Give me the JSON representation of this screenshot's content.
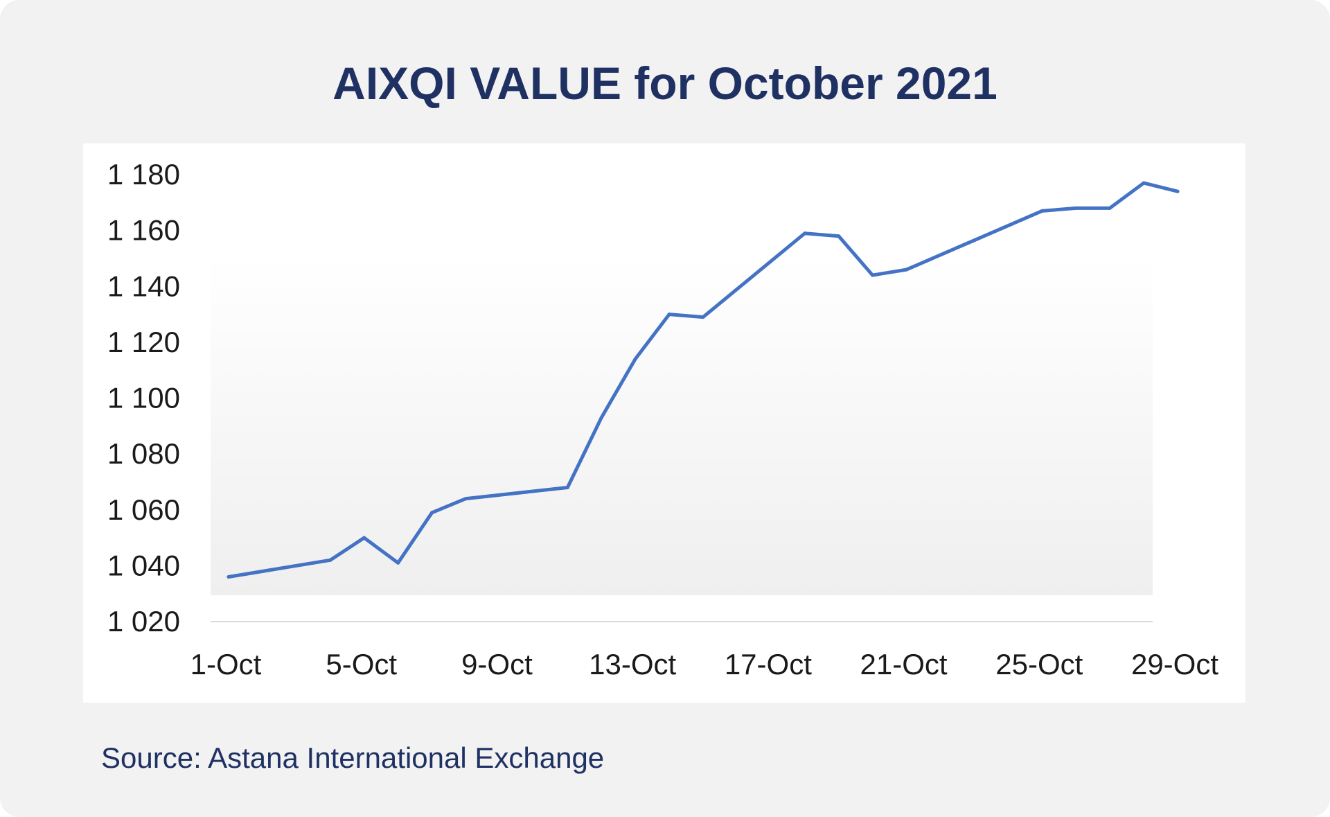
{
  "title": "AIXQI VALUE for October 2021",
  "source": "Source: Astana International Exchange",
  "colors": {
    "background": "#f2f2f2",
    "title": "#1f3163",
    "line": "#4472c4",
    "axis": "#d9d9d9"
  },
  "chart_data": {
    "type": "line",
    "title": "AIXQI VALUE for October 2021",
    "xlabel": "",
    "ylabel": "",
    "grid": false,
    "legend": "none",
    "ylim": [
      1020,
      1180
    ],
    "y_ticks": [
      "1 020",
      "1 040",
      "1 060",
      "1 080",
      "1 100",
      "1 120",
      "1 140",
      "1 160",
      "1 180"
    ],
    "y_tick_values": [
      1020,
      1040,
      1060,
      1080,
      1100,
      1120,
      1140,
      1160,
      1180
    ],
    "x_ticks": [
      "1-Oct",
      "5-Oct",
      "9-Oct",
      "13-Oct",
      "17-Oct",
      "21-Oct",
      "25-Oct",
      "29-Oct"
    ],
    "x_tick_days": [
      1,
      5,
      9,
      13,
      17,
      21,
      25,
      29
    ],
    "xlim_days": [
      1,
      29
    ],
    "series": [
      {
        "name": "",
        "x": [
          1,
          4,
          5,
          6,
          7,
          8,
          11,
          12,
          13,
          14,
          15,
          18,
          19,
          20,
          21,
          25,
          26,
          27,
          28,
          29
        ],
        "x_labels": [
          "1-Oct",
          "4-Oct",
          "5-Oct",
          "6-Oct",
          "7-Oct",
          "8-Oct",
          "11-Oct",
          "12-Oct",
          "13-Oct",
          "14-Oct",
          "15-Oct",
          "18-Oct",
          "19-Oct",
          "20-Oct",
          "21-Oct",
          "25-Oct",
          "26-Oct",
          "27-Oct",
          "28-Oct",
          "29-Oct"
        ],
        "values": [
          1036,
          1042,
          1050,
          1041,
          1059,
          1064,
          1068,
          1093,
          1114,
          1130,
          1129,
          1159,
          1158,
          1144,
          1146,
          1167,
          1168,
          1168,
          1177,
          1174
        ]
      }
    ]
  }
}
